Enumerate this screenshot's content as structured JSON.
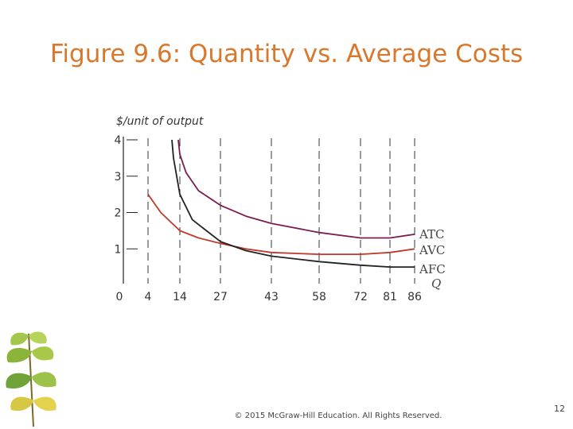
{
  "slide": {
    "title": "Figure 9.6: Quantity vs. Average Costs",
    "footer": "© 2015 McGraw-Hill Education. All Rights Reserved.",
    "page_number": "12"
  },
  "colors": {
    "title": "#d9782d",
    "atc": "#7b1e4f",
    "avc": "#c0392b",
    "afc": "#222222",
    "dash": "#333333"
  },
  "decoration": {
    "icon": "ginkgo-leaves-icon"
  },
  "chart_data": {
    "type": "line",
    "ylabel": "$/unit of output",
    "xlabel": "Q",
    "x_ticks": [
      0,
      4,
      14,
      27,
      43,
      58,
      72,
      81,
      86
    ],
    "y_ticks": [
      0,
      1,
      2,
      3,
      4
    ],
    "ylim": [
      0,
      4
    ],
    "dashed_guides_at_x": [
      4,
      14,
      27,
      43,
      58,
      72,
      81,
      86
    ],
    "grid": false,
    "legend": "inline labels at right end of curves",
    "series": [
      {
        "name": "ATC",
        "points": [
          [
            13.5,
            4.0
          ],
          [
            14,
            3.6
          ],
          [
            16,
            3.1
          ],
          [
            20,
            2.6
          ],
          [
            27,
            2.2
          ],
          [
            35,
            1.9
          ],
          [
            43,
            1.7
          ],
          [
            58,
            1.45
          ],
          [
            72,
            1.3
          ],
          [
            81,
            1.3
          ],
          [
            86,
            1.4
          ]
        ]
      },
      {
        "name": "AVC",
        "points": [
          [
            4,
            2.5
          ],
          [
            8,
            2.0
          ],
          [
            14,
            1.5
          ],
          [
            20,
            1.3
          ],
          [
            27,
            1.15
          ],
          [
            35,
            1.0
          ],
          [
            43,
            0.9
          ],
          [
            58,
            0.85
          ],
          [
            72,
            0.85
          ],
          [
            81,
            0.9
          ],
          [
            86,
            1.0
          ]
        ]
      },
      {
        "name": "AFC",
        "points": [
          [
            11.5,
            4.0
          ],
          [
            12,
            3.5
          ],
          [
            14,
            2.5
          ],
          [
            18,
            1.8
          ],
          [
            27,
            1.2
          ],
          [
            35,
            0.95
          ],
          [
            43,
            0.8
          ],
          [
            58,
            0.65
          ],
          [
            72,
            0.55
          ],
          [
            81,
            0.5
          ],
          [
            86,
            0.5
          ]
        ]
      }
    ]
  }
}
